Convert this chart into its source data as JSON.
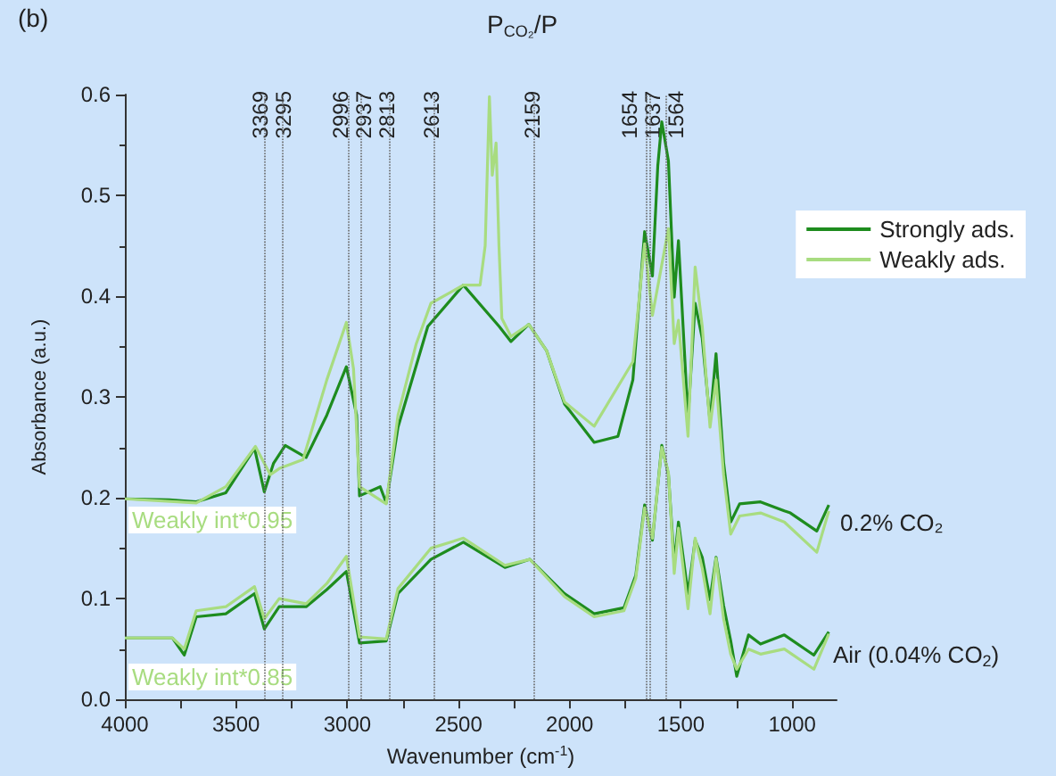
{
  "chart_data": {
    "type": "line",
    "title": "P$_{CO₂}$/P",
    "xlabel": "Wavenumber (cm$^{-1}$)",
    "ylabel": "Absorbance (a.u.)",
    "xlim": [
      4000,
      800
    ],
    "xticks": [
      4000,
      3500,
      3000,
      2500,
      2000,
      1500,
      1000
    ],
    "ylim": [
      0,
      0.6
    ],
    "yticks": [
      {
        "value": 0,
        "label": "0.0"
      },
      0.1,
      0.2,
      0.3,
      0.4,
      0.5,
      0.6
    ],
    "grid": false,
    "legend": "top right",
    "marker": "none",
    "line_style": "solid",
    "annotations": [
      "(b)",
      "Weakly int*0.95",
      "Weakly int*0.85",
      "0.2% CO₂",
      "Air (0.04% CO$_{2}$)"
    ],
    "ref_lines": [
      {
        "axis": "x",
        "value": 3369,
        "label": "3369"
      },
      {
        "axis": "x",
        "value": 3295,
        "label": "3295"
      },
      {
        "axis": "x",
        "value": 2996,
        "label": "2996"
      },
      {
        "axis": "x",
        "value": 2937,
        "label": "2937"
      },
      {
        "axis": "x",
        "value": 2813,
        "label": "2813"
      },
      {
        "axis": "x",
        "value": 2613,
        "label": "2613"
      },
      {
        "axis": "x",
        "value": 2159,
        "label": "2159"
      },
      {
        "axis": "x",
        "value": 1654,
        "label": "1654"
      },
      {
        "axis": "x",
        "value": 1637,
        "label": "1637"
      },
      {
        "axis": "x",
        "value": 1564,
        "label": "1564"
      }
    ],
    "series": [
      {
        "name": "Strongly ads.",
        "color": "#1e8c1e",
        "x": [
          4000,
          3800,
          3679,
          3546,
          3417,
          3373,
          3332,
          3279,
          3185,
          3092,
          3004,
          2958,
          2945,
          2852,
          2825,
          2772,
          2638,
          2478,
          2317,
          2264,
          2184,
          2104,
          2023,
          1890,
          1783,
          1716,
          1663,
          1628,
          1604,
          1586,
          1556,
          1530,
          1511,
          1468,
          1436,
          1404,
          1369,
          1342,
          1308,
          1276,
          1236,
          1142,
          1035,
          1008,
          889,
          835
        ],
        "values": [
          0.199,
          0.198,
          0.196,
          0.205,
          0.249,
          0.206,
          0.234,
          0.252,
          0.24,
          0.282,
          0.33,
          0.282,
          0.202,
          0.211,
          0.195,
          0.27,
          0.37,
          0.411,
          0.37,
          0.355,
          0.372,
          0.346,
          0.293,
          0.255,
          0.261,
          0.317,
          0.464,
          0.42,
          0.529,
          0.573,
          0.534,
          0.399,
          0.455,
          0.279,
          0.393,
          0.358,
          0.276,
          0.343,
          0.235,
          0.176,
          0.194,
          0.196,
          0.187,
          0.185,
          0.167,
          0.193
        ]
      },
      {
        "name": "Weakly ads.",
        "color": "#a8dc80",
        "x": [
          4000,
          3679,
          3546,
          3413,
          3346,
          3306,
          3199,
          3092,
          3004,
          2972,
          2945,
          2825,
          2772,
          2691,
          2624,
          2478,
          2403,
          2380,
          2361,
          2348,
          2331,
          2318,
          2305,
          2264,
          2184,
          2104,
          2023,
          1890,
          1716,
          1663,
          1628,
          1556,
          1530,
          1511,
          1468,
          1436,
          1404,
          1369,
          1342,
          1308,
          1276,
          1236,
          1142,
          1035,
          889,
          835
        ],
        "values": [
          0.199,
          0.195,
          0.211,
          0.251,
          0.223,
          0.229,
          0.238,
          0.317,
          0.374,
          0.328,
          0.211,
          0.194,
          0.282,
          0.352,
          0.393,
          0.411,
          0.411,
          0.45,
          0.598,
          0.52,
          0.552,
          0.45,
          0.378,
          0.36,
          0.372,
          0.346,
          0.295,
          0.271,
          0.335,
          0.452,
          0.381,
          0.467,
          0.353,
          0.376,
          0.261,
          0.429,
          0.37,
          0.27,
          0.317,
          0.223,
          0.164,
          0.182,
          0.185,
          0.176,
          0.146,
          0.187
        ]
      },
      {
        "color": "#1e8c1e",
        "x": [
          4000,
          3786,
          3733,
          3679,
          3546,
          3417,
          3373,
          3306,
          3185,
          3092,
          3004,
          2945,
          2825,
          2772,
          2624,
          2478,
          2291,
          2179,
          2023,
          1890,
          1756,
          1703,
          1663,
          1628,
          1586,
          1556,
          1530,
          1511,
          1468,
          1436,
          1404,
          1369,
          1342,
          1308,
          1276,
          1249,
          1196,
          1142,
          1035,
          902,
          835
        ],
        "values": [
          0.061,
          0.061,
          0.044,
          0.082,
          0.085,
          0.105,
          0.07,
          0.092,
          0.092,
          0.109,
          0.127,
          0.056,
          0.058,
          0.105,
          0.139,
          0.156,
          0.131,
          0.139,
          0.105,
          0.085,
          0.091,
          0.123,
          0.193,
          0.158,
          0.252,
          0.223,
          0.135,
          0.176,
          0.105,
          0.158,
          0.141,
          0.099,
          0.141,
          0.093,
          0.058,
          0.023,
          0.064,
          0.055,
          0.064,
          0.044,
          0.067
        ]
      },
      {
        "color": "#a8dc80",
        "x": [
          4000,
          3786,
          3733,
          3679,
          3546,
          3417,
          3373,
          3306,
          3185,
          3092,
          3004,
          2945,
          2825,
          2772,
          2624,
          2478,
          2291,
          2179,
          2023,
          1890,
          1756,
          1703,
          1663,
          1628,
          1586,
          1556,
          1530,
          1511,
          1468,
          1436,
          1404,
          1369,
          1342,
          1308,
          1276,
          1249,
          1196,
          1142,
          1035,
          902,
          835
        ],
        "values": [
          0.061,
          0.061,
          0.05,
          0.088,
          0.092,
          0.112,
          0.08,
          0.1,
          0.095,
          0.115,
          0.142,
          0.062,
          0.06,
          0.11,
          0.15,
          0.16,
          0.133,
          0.139,
          0.102,
          0.082,
          0.088,
          0.12,
          0.19,
          0.16,
          0.25,
          0.225,
          0.125,
          0.17,
          0.09,
          0.16,
          0.13,
          0.085,
          0.14,
          0.08,
          0.045,
          0.03,
          0.05,
          0.045,
          0.05,
          0.03,
          0.065
        ]
      }
    ]
  }
}
